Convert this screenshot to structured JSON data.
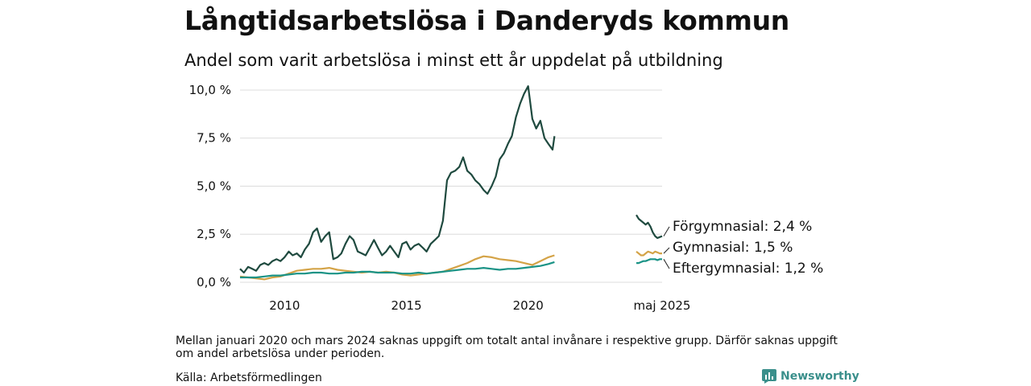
{
  "title": "Långtidsarbetslösa i Danderyds kommun",
  "subtitle": "Andel som varit arbetslösa i minst ett år uppdelat på utbildning",
  "footnote": "Mellan januari 2020 och mars 2024 saknas uppgift om totalt antal invånare i respektive grupp. Därför saknas uppgift om andel arbetslösa under perioden.",
  "source": "Källa: Arbetsförmedlingen",
  "brand": "Newsworthy",
  "chart_data": {
    "type": "line",
    "y_unit": "%",
    "ylim": [
      0,
      10.5
    ],
    "y_ticks": [
      0,
      2.5,
      5,
      7.5,
      10
    ],
    "y_tick_labels": [
      "0,0 %",
      "2,5 %",
      "5,0 %",
      "7,5 %",
      "10,0 %"
    ],
    "x_ticks": [
      2010,
      2015,
      2020
    ],
    "x_tick_labels": [
      "2010",
      "2015",
      "2020"
    ],
    "x_extra_label": "maj 2025",
    "grid": true,
    "series": [
      {
        "name": "Förgymnasial",
        "color": "#1f4a3f",
        "end_label": "Förgymnasial: 2,4 %",
        "points": [
          [
            2008.17,
            0.7
          ],
          [
            2008.33,
            0.5
          ],
          [
            2008.5,
            0.8
          ],
          [
            2008.67,
            0.7
          ],
          [
            2008.83,
            0.6
          ],
          [
            2009.0,
            0.9
          ],
          [
            2009.17,
            1.0
          ],
          [
            2009.33,
            0.9
          ],
          [
            2009.5,
            1.1
          ],
          [
            2009.67,
            1.2
          ],
          [
            2009.83,
            1.1
          ],
          [
            2010.0,
            1.3
          ],
          [
            2010.17,
            1.6
          ],
          [
            2010.33,
            1.4
          ],
          [
            2010.5,
            1.5
          ],
          [
            2010.67,
            1.3
          ],
          [
            2010.83,
            1.7
          ],
          [
            2011.0,
            2.0
          ],
          [
            2011.17,
            2.6
          ],
          [
            2011.33,
            2.8
          ],
          [
            2011.5,
            2.1
          ],
          [
            2011.67,
            2.4
          ],
          [
            2011.83,
            2.6
          ],
          [
            2012.0,
            1.2
          ],
          [
            2012.17,
            1.3
          ],
          [
            2012.33,
            1.5
          ],
          [
            2012.5,
            2.0
          ],
          [
            2012.67,
            2.4
          ],
          [
            2012.83,
            2.2
          ],
          [
            2013.0,
            1.6
          ],
          [
            2013.17,
            1.5
          ],
          [
            2013.33,
            1.4
          ],
          [
            2013.5,
            1.8
          ],
          [
            2013.67,
            2.2
          ],
          [
            2013.83,
            1.8
          ],
          [
            2014.0,
            1.4
          ],
          [
            2014.17,
            1.6
          ],
          [
            2014.33,
            1.9
          ],
          [
            2014.5,
            1.6
          ],
          [
            2014.67,
            1.3
          ],
          [
            2014.83,
            2.0
          ],
          [
            2015.0,
            2.1
          ],
          [
            2015.17,
            1.7
          ],
          [
            2015.33,
            1.9
          ],
          [
            2015.5,
            2.0
          ],
          [
            2015.67,
            1.8
          ],
          [
            2015.83,
            1.6
          ],
          [
            2016.0,
            2.0
          ],
          [
            2016.17,
            2.2
          ],
          [
            2016.33,
            2.4
          ],
          [
            2016.5,
            3.2
          ],
          [
            2016.67,
            5.3
          ],
          [
            2016.83,
            5.7
          ],
          [
            2017.0,
            5.8
          ],
          [
            2017.17,
            6.0
          ],
          [
            2017.33,
            6.5
          ],
          [
            2017.5,
            5.8
          ],
          [
            2017.67,
            5.6
          ],
          [
            2017.83,
            5.3
          ],
          [
            2018.0,
            5.1
          ],
          [
            2018.17,
            4.8
          ],
          [
            2018.33,
            4.6
          ],
          [
            2018.5,
            5.0
          ],
          [
            2018.67,
            5.5
          ],
          [
            2018.83,
            6.4
          ],
          [
            2019.0,
            6.7
          ],
          [
            2019.17,
            7.2
          ],
          [
            2019.33,
            7.6
          ],
          [
            2019.5,
            8.6
          ],
          [
            2019.67,
            9.3
          ],
          [
            2019.83,
            9.8
          ],
          [
            2020.0,
            10.2
          ],
          [
            2020.17,
            8.5
          ],
          [
            2020.33,
            8.0
          ],
          [
            2020.5,
            8.4
          ],
          [
            2020.67,
            7.5
          ],
          [
            2020.83,
            7.2
          ],
          [
            2021.0,
            6.9
          ],
          [
            2021.08,
            7.6
          ]
        ]
      },
      {
        "name": "Gymnasial",
        "color": "#d4a347",
        "end_label": "Gymnasial: 1,5 %",
        "points": [
          [
            2008.17,
            0.3
          ],
          [
            2008.5,
            0.25
          ],
          [
            2008.83,
            0.2
          ],
          [
            2009.17,
            0.15
          ],
          [
            2009.5,
            0.25
          ],
          [
            2009.83,
            0.3
          ],
          [
            2010.17,
            0.45
          ],
          [
            2010.5,
            0.6
          ],
          [
            2010.83,
            0.65
          ],
          [
            2011.17,
            0.7
          ],
          [
            2011.5,
            0.7
          ],
          [
            2011.83,
            0.75
          ],
          [
            2012.17,
            0.65
          ],
          [
            2012.5,
            0.6
          ],
          [
            2012.83,
            0.55
          ],
          [
            2013.17,
            0.5
          ],
          [
            2013.5,
            0.55
          ],
          [
            2013.83,
            0.5
          ],
          [
            2014.17,
            0.55
          ],
          [
            2014.5,
            0.5
          ],
          [
            2014.83,
            0.4
          ],
          [
            2015.17,
            0.35
          ],
          [
            2015.5,
            0.4
          ],
          [
            2015.83,
            0.45
          ],
          [
            2016.17,
            0.5
          ],
          [
            2016.5,
            0.55
          ],
          [
            2016.83,
            0.7
          ],
          [
            2017.17,
            0.85
          ],
          [
            2017.5,
            1.0
          ],
          [
            2017.83,
            1.2
          ],
          [
            2018.17,
            1.35
          ],
          [
            2018.5,
            1.3
          ],
          [
            2018.83,
            1.2
          ],
          [
            2019.17,
            1.15
          ],
          [
            2019.5,
            1.1
          ],
          [
            2019.83,
            1.0
          ],
          [
            2020.17,
            0.9
          ],
          [
            2020.5,
            1.1
          ],
          [
            2020.83,
            1.3
          ],
          [
            2021.08,
            1.4
          ]
        ]
      },
      {
        "name": "Eftergymnasial",
        "color": "#1a9386",
        "end_label": "Eftergymnasial: 1,2 %",
        "points": [
          [
            2008.17,
            0.25
          ],
          [
            2008.5,
            0.25
          ],
          [
            2008.83,
            0.25
          ],
          [
            2009.17,
            0.3
          ],
          [
            2009.5,
            0.35
          ],
          [
            2009.83,
            0.35
          ],
          [
            2010.17,
            0.4
          ],
          [
            2010.5,
            0.45
          ],
          [
            2010.83,
            0.45
          ],
          [
            2011.17,
            0.5
          ],
          [
            2011.5,
            0.5
          ],
          [
            2011.83,
            0.45
          ],
          [
            2012.17,
            0.45
          ],
          [
            2012.5,
            0.5
          ],
          [
            2012.83,
            0.5
          ],
          [
            2013.17,
            0.55
          ],
          [
            2013.5,
            0.55
          ],
          [
            2013.83,
            0.5
          ],
          [
            2014.17,
            0.5
          ],
          [
            2014.5,
            0.5
          ],
          [
            2014.83,
            0.45
          ],
          [
            2015.17,
            0.45
          ],
          [
            2015.5,
            0.5
          ],
          [
            2015.83,
            0.45
          ],
          [
            2016.17,
            0.5
          ],
          [
            2016.5,
            0.55
          ],
          [
            2016.83,
            0.6
          ],
          [
            2017.17,
            0.65
          ],
          [
            2017.5,
            0.7
          ],
          [
            2017.83,
            0.7
          ],
          [
            2018.17,
            0.75
          ],
          [
            2018.5,
            0.7
          ],
          [
            2018.83,
            0.65
          ],
          [
            2019.17,
            0.7
          ],
          [
            2019.5,
            0.7
          ],
          [
            2019.83,
            0.75
          ],
          [
            2020.17,
            0.8
          ],
          [
            2020.5,
            0.85
          ],
          [
            2020.83,
            0.95
          ],
          [
            2021.08,
            1.05
          ]
        ]
      }
    ],
    "recent_segment": {
      "x_label": "maj 2025",
      "series": [
        {
          "name": "Förgymnasial",
          "values": [
            3.5,
            3.3,
            3.2,
            3.1,
            3.0,
            3.1,
            2.9,
            2.6,
            2.4,
            2.3,
            2.35,
            2.4
          ]
        },
        {
          "name": "Gymnasial",
          "values": [
            1.6,
            1.5,
            1.4,
            1.4,
            1.5,
            1.6,
            1.55,
            1.5,
            1.6,
            1.55,
            1.5,
            1.5
          ]
        },
        {
          "name": "Eftergymnasial",
          "values": [
            1.0,
            1.0,
            1.05,
            1.1,
            1.1,
            1.15,
            1.2,
            1.2,
            1.2,
            1.15,
            1.2,
            1.2
          ]
        }
      ]
    }
  }
}
